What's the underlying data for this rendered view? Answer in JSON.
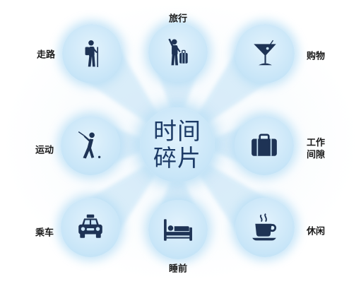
{
  "center": {
    "lines": [
      "时间",
      "碎片"
    ]
  },
  "nodes": {
    "walking": {
      "label": "走路",
      "icon": "hiker-icon"
    },
    "travel": {
      "label": "旅行",
      "icon": "traveler-with-suitcase-icon"
    },
    "shopping": {
      "label": "购物",
      "icon": "cocktail-glass-icon"
    },
    "sports": {
      "label": "运动",
      "icon": "golfer-icon"
    },
    "work_break": {
      "label_lines": [
        "工作",
        "间隙"
      ],
      "icon": "briefcase-icon"
    },
    "commute": {
      "label": "乘车",
      "icon": "taxi-icon"
    },
    "bedtime": {
      "label": "睡前",
      "icon": "bed-icon"
    },
    "leisure": {
      "label": "休闲",
      "icon": "coffee-cup-icon"
    }
  },
  "colors": {
    "icon": "#1e3355",
    "circle_fill": "#c9e6f8",
    "center_text": "#1c3a66",
    "label": "#1a1a1a"
  }
}
